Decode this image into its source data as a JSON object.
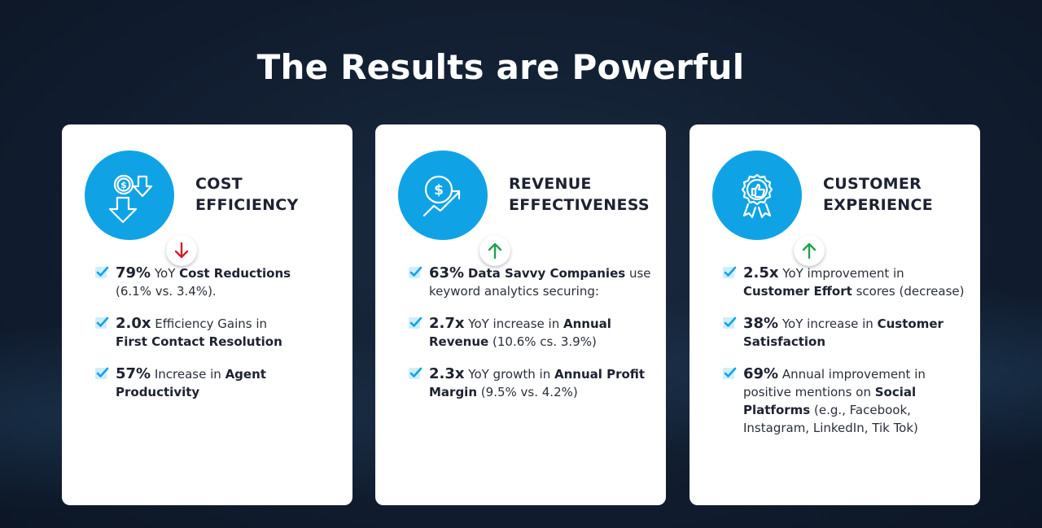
{
  "title": "The Results are Powerful",
  "accent_color": "#0fa3e6",
  "cards": [
    {
      "title_line1": "COST",
      "title_line2": "EFFICIENCY",
      "icon": "dollar-coin-down-arrows-icon",
      "trend": "down",
      "trend_color": "#d0202a",
      "items": [
        {
          "stat": "79%",
          "t1": "YoY",
          "b1": "Cost Reductions",
          "t2": "(6.1% vs. 3.4%)."
        },
        {
          "stat": "2.0x",
          "t1": "Efficiency Gains in",
          "b1": "First Contact Resolution",
          "t2": ""
        },
        {
          "stat": "57%",
          "t1": "Increase in",
          "b1": "Agent Productivity",
          "t2": ""
        }
      ]
    },
    {
      "title_line1": "REVENUE",
      "title_line2": "EFFECTIVENESS",
      "icon": "dollar-growth-chart-icon",
      "trend": "up",
      "trend_color": "#1fa24a",
      "items": [
        {
          "stat": "63%",
          "b0": "Data Savvy Companies",
          "t1": "use keyword analytics securing:"
        },
        {
          "stat": "2.7x",
          "t1": "YoY increase in",
          "b1": "Annual Revenue",
          "t2": "(10.6% cs. 3.9%)"
        },
        {
          "stat": "2.3x",
          "t1": "YoY growth in",
          "b1": "Annual Profit Margin",
          "t2": "(9.5% vs. 4.2%)"
        }
      ]
    },
    {
      "title_line1": "CUSTOMER",
      "title_line2": "EXPERIENCE",
      "icon": "thumbs-up-badge-icon",
      "trend": "up",
      "trend_color": "#1fa24a",
      "items": [
        {
          "stat": "2.5x",
          "t1": "YoY improvement in",
          "b1": "Customer Effort",
          "t2": "scores (decrease)"
        },
        {
          "stat": "38%",
          "t1": "YoY increase in",
          "b1": "Customer Satisfaction",
          "t2": ""
        },
        {
          "stat": "69%",
          "t1": "Annual improvement in positive mentions on",
          "b1": "Social Platforms",
          "t2": "(e.g., Facebook, Instagram, LinkedIn, Tik Tok)"
        }
      ]
    }
  ]
}
